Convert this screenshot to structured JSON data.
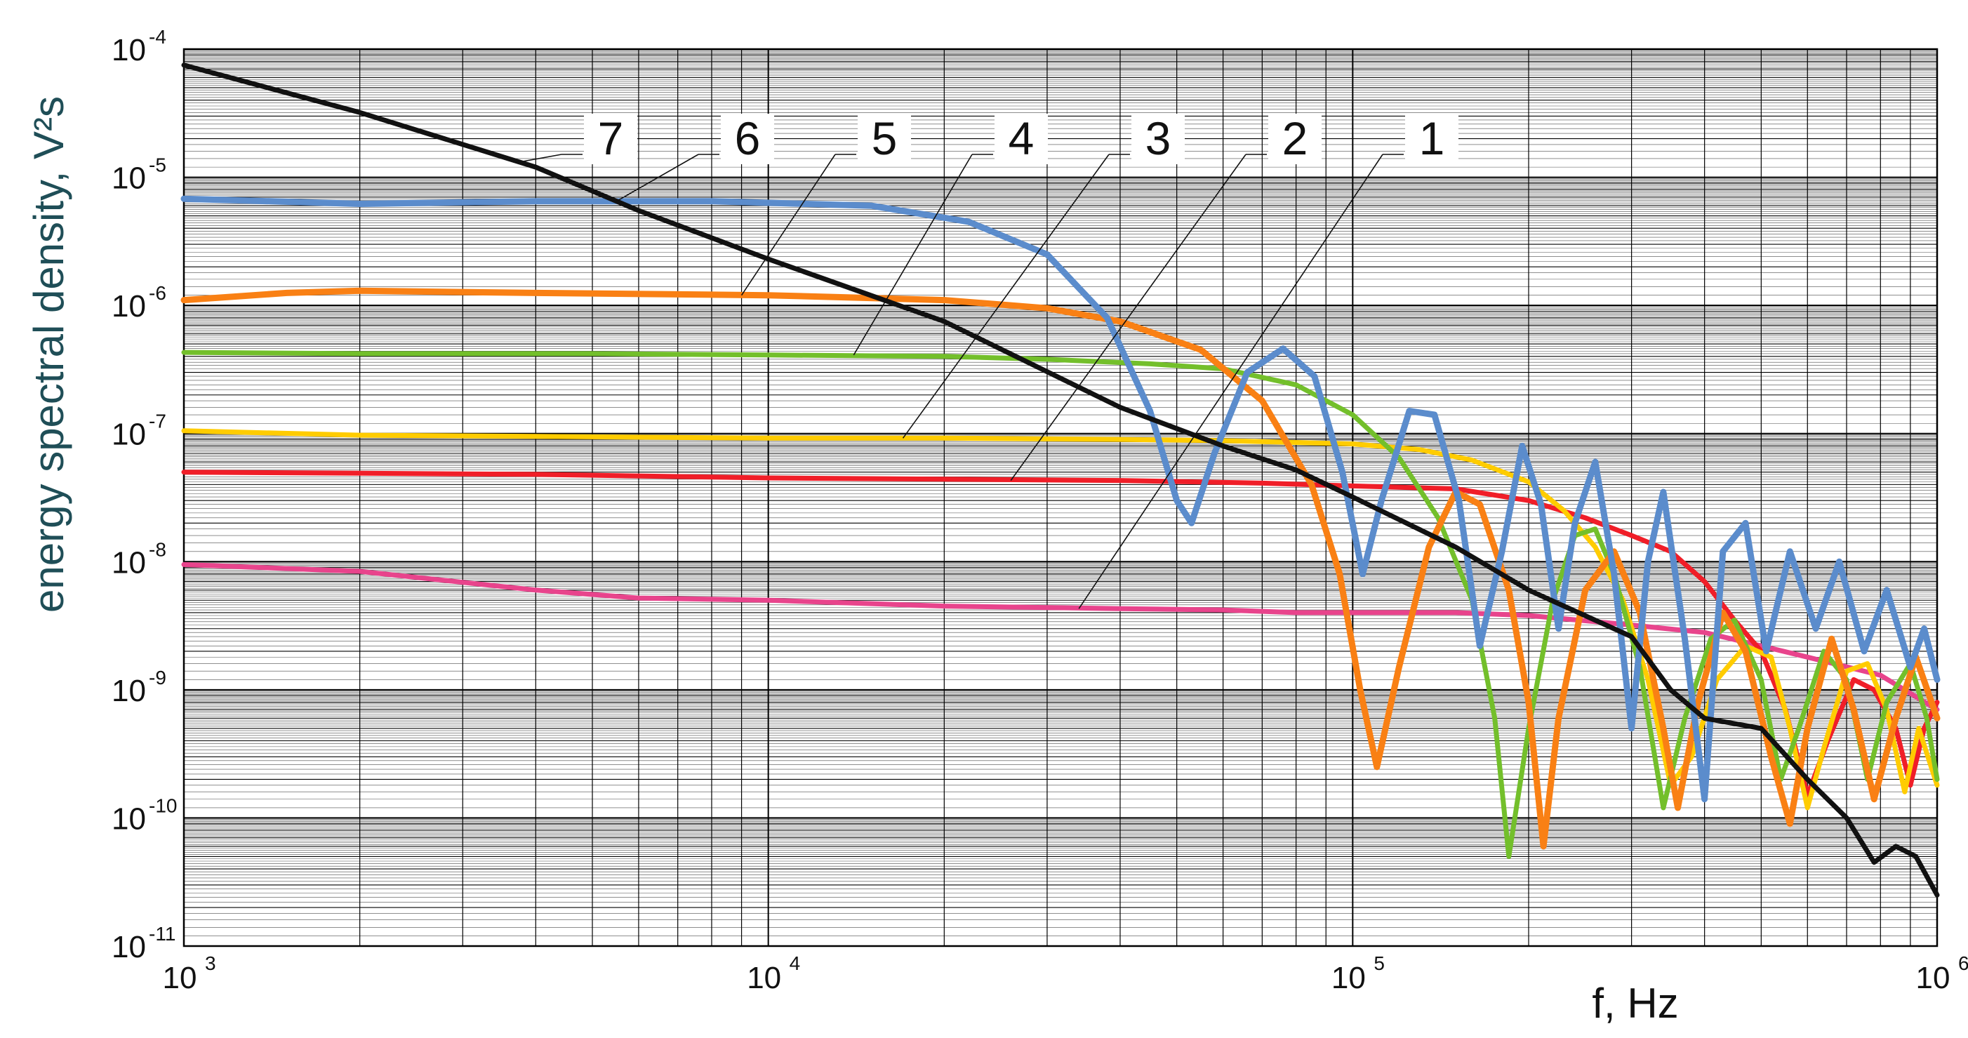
{
  "chart_data": {
    "type": "line",
    "title": "",
    "xlabel": "f, Hz",
    "ylabel": "energy spectral density, V²s",
    "x_scale": "log",
    "y_scale": "log",
    "xlim": [
      1000,
      1000000
    ],
    "ylim": [
      1e-11,
      0.0001
    ],
    "grid": true,
    "x_tick_labels": [
      {
        "value": 1000,
        "base": "10",
        "exp": "3"
      },
      {
        "value": 10000,
        "base": "10",
        "exp": "4"
      },
      {
        "value": 100000,
        "base": "10",
        "exp": "5"
      },
      {
        "value": 1000000,
        "base": "10",
        "exp": "6"
      }
    ],
    "y_tick_labels": [
      {
        "value": 0.0001,
        "base": "10",
        "exp": "-4"
      },
      {
        "value": 1e-05,
        "base": "10",
        "exp": "-5"
      },
      {
        "value": 1e-06,
        "base": "10",
        "exp": "-6"
      },
      {
        "value": 1e-07,
        "base": "10",
        "exp": "-7"
      },
      {
        "value": 1e-08,
        "base": "10",
        "exp": "-8"
      },
      {
        "value": 1e-09,
        "base": "10",
        "exp": "-9"
      },
      {
        "value": 1e-10,
        "base": "10",
        "exp": "-10"
      },
      {
        "value": 1e-11,
        "base": "10",
        "exp": "-11"
      }
    ],
    "colors": {
      "axis_title": "#1f4e57",
      "grid": "#000000",
      "1": "#e8448c",
      "2": "#f01e28",
      "3": "#ffcc00",
      "4": "#73bf2b",
      "5": "#f98014",
      "6": "#5b8ccc",
      "7": "#111111"
    },
    "series": [
      {
        "name": "1",
        "points": [
          [
            1000,
            9.5e-09
          ],
          [
            2000,
            8.4e-09
          ],
          [
            4000,
            6e-09
          ],
          [
            6000,
            5.2e-09
          ],
          [
            10000,
            5e-09
          ],
          [
            20000,
            4.5e-09
          ],
          [
            40000,
            4.3e-09
          ],
          [
            60000,
            4.2e-09
          ],
          [
            80000,
            4e-09
          ],
          [
            100000,
            4e-09
          ],
          [
            150000,
            4e-09
          ],
          [
            200000,
            3.8e-09
          ],
          [
            300000,
            3.2e-09
          ],
          [
            400000,
            2.8e-09
          ],
          [
            500000,
            2.2e-09
          ],
          [
            600000,
            1.8e-09
          ],
          [
            800000,
            1.3e-09
          ],
          [
            1000000,
            7e-10
          ]
        ],
        "label_anchor": [
          34000,
          4.3e-09
        ]
      },
      {
        "name": "2",
        "points": [
          [
            1000,
            5e-08
          ],
          [
            2000,
            4.9e-08
          ],
          [
            4000,
            4.8e-08
          ],
          [
            10000,
            4.5e-08
          ],
          [
            20000,
            4.4e-08
          ],
          [
            40000,
            4.3e-08
          ],
          [
            70000,
            4.1e-08
          ],
          [
            100000,
            3.9e-08
          ],
          [
            150000,
            3.7e-08
          ],
          [
            200000,
            3e-08
          ],
          [
            250000,
            2.2e-08
          ],
          [
            300000,
            1.6e-08
          ],
          [
            350000,
            1.2e-08
          ],
          [
            400000,
            7e-09
          ],
          [
            450000,
            3.5e-09
          ],
          [
            500000,
            2e-09
          ],
          [
            550000,
            7e-10
          ],
          [
            600000,
            1.5e-10
          ],
          [
            650000,
            4e-10
          ],
          [
            720000,
            1.2e-09
          ],
          [
            780000,
            1e-09
          ],
          [
            850000,
            5e-10
          ],
          [
            900000,
            1.8e-10
          ],
          [
            950000,
            5e-10
          ],
          [
            1000000,
            8e-10
          ]
        ],
        "label_anchor": [
          26000,
          4.3e-08
        ]
      },
      {
        "name": "3",
        "points": [
          [
            1000,
            1.05e-07
          ],
          [
            2000,
            9.7e-08
          ],
          [
            4000,
            9.5e-08
          ],
          [
            10000,
            9.2e-08
          ],
          [
            20000,
            9.2e-08
          ],
          [
            40000,
            9e-08
          ],
          [
            60000,
            8.8e-08
          ],
          [
            100000,
            8.3e-08
          ],
          [
            130000,
            7.5e-08
          ],
          [
            160000,
            6.2e-08
          ],
          [
            200000,
            4.2e-08
          ],
          [
            230000,
            2.5e-08
          ],
          [
            260000,
            1.3e-08
          ],
          [
            290000,
            5e-09
          ],
          [
            320000,
            1.2e-09
          ],
          [
            350000,
            1.8e-10
          ],
          [
            380000,
            3e-10
          ],
          [
            420000,
            1.2e-09
          ],
          [
            470000,
            2.2e-09
          ],
          [
            520000,
            1.8e-09
          ],
          [
            560000,
            5e-10
          ],
          [
            600000,
            1.2e-10
          ],
          [
            640000,
            3.5e-10
          ],
          [
            700000,
            1.4e-09
          ],
          [
            760000,
            1.6e-09
          ],
          [
            820000,
            7e-10
          ],
          [
            880000,
            1.6e-10
          ],
          [
            930000,
            5e-10
          ],
          [
            1000000,
            1.8e-10
          ]
        ],
        "label_anchor": [
          17000,
          9.2e-08
        ]
      },
      {
        "name": "4",
        "points": [
          [
            1000,
            4.3e-07
          ],
          [
            2000,
            4.2e-07
          ],
          [
            5000,
            4.2e-07
          ],
          [
            10000,
            4.1e-07
          ],
          [
            20000,
            4e-07
          ],
          [
            30000,
            3.8e-07
          ],
          [
            45000,
            3.5e-07
          ],
          [
            60000,
            3.2e-07
          ],
          [
            80000,
            2.4e-07
          ],
          [
            100000,
            1.4e-07
          ],
          [
            120000,
            6.5e-08
          ],
          [
            140000,
            2.2e-08
          ],
          [
            160000,
            5e-09
          ],
          [
            175000,
            6e-10
          ],
          [
            185000,
            5e-11
          ],
          [
            200000,
            5e-10
          ],
          [
            220000,
            5e-09
          ],
          [
            240000,
            1.6e-08
          ],
          [
            260000,
            1.8e-08
          ],
          [
            280000,
            8e-09
          ],
          [
            310000,
            1.5e-09
          ],
          [
            340000,
            1.2e-10
          ],
          [
            370000,
            6e-10
          ],
          [
            410000,
            2.5e-09
          ],
          [
            450000,
            3.5e-09
          ],
          [
            500000,
            1.2e-09
          ],
          [
            540000,
            2e-10
          ],
          [
            580000,
            5e-10
          ],
          [
            640000,
            2e-09
          ],
          [
            700000,
            1.2e-09
          ],
          [
            760000,
            2e-10
          ],
          [
            820000,
            8e-10
          ],
          [
            900000,
            1.6e-09
          ],
          [
            960000,
            6e-10
          ],
          [
            1000000,
            2e-10
          ]
        ],
        "label_anchor": [
          14000,
          4.1e-07
        ]
      },
      {
        "name": "5",
        "points": [
          [
            1000,
            1.1e-06
          ],
          [
            1500,
            1.25e-06
          ],
          [
            2000,
            1.3e-06
          ],
          [
            4000,
            1.25e-06
          ],
          [
            10000,
            1.2e-06
          ],
          [
            20000,
            1.1e-06
          ],
          [
            30000,
            9.5e-07
          ],
          [
            40000,
            7.5e-07
          ],
          [
            55000,
            4.5e-07
          ],
          [
            70000,
            1.8e-07
          ],
          [
            85000,
            4e-08
          ],
          [
            95000,
            8e-09
          ],
          [
            103000,
            1e-09
          ],
          [
            110000,
            2.5e-10
          ],
          [
            120000,
            1.5e-09
          ],
          [
            135000,
            1.3e-08
          ],
          [
            150000,
            3.5e-08
          ],
          [
            165000,
            2.8e-08
          ],
          [
            185000,
            6e-09
          ],
          [
            200000,
            8e-10
          ],
          [
            212000,
            6e-11
          ],
          [
            225000,
            6e-10
          ],
          [
            250000,
            6e-09
          ],
          [
            280000,
            1.2e-08
          ],
          [
            310000,
            4e-09
          ],
          [
            340000,
            5e-10
          ],
          [
            360000,
            1.2e-10
          ],
          [
            390000,
            8e-10
          ],
          [
            430000,
            4e-09
          ],
          [
            470000,
            2e-09
          ],
          [
            520000,
            3e-10
          ],
          [
            560000,
            9e-11
          ],
          [
            600000,
            5e-10
          ],
          [
            660000,
            2.5e-09
          ],
          [
            720000,
            7e-10
          ],
          [
            780000,
            1.4e-10
          ],
          [
            850000,
            6e-10
          ],
          [
            920000,
            1.8e-09
          ],
          [
            1000000,
            6e-10
          ]
        ],
        "label_anchor": [
          9000,
          1.2e-06
        ]
      },
      {
        "name": "6",
        "points": [
          [
            1000,
            6.8e-06
          ],
          [
            2000,
            6.2e-06
          ],
          [
            4000,
            6.5e-06
          ],
          [
            8000,
            6.5e-06
          ],
          [
            15000,
            6e-06
          ],
          [
            22000,
            4.5e-06
          ],
          [
            30000,
            2.5e-06
          ],
          [
            38000,
            8e-07
          ],
          [
            45000,
            1.5e-07
          ],
          [
            50000,
            3e-08
          ],
          [
            53000,
            2e-08
          ],
          [
            58000,
            7e-08
          ],
          [
            66000,
            3e-07
          ],
          [
            76000,
            4.6e-07
          ],
          [
            86000,
            2.8e-07
          ],
          [
            96000,
            5e-08
          ],
          [
            104000,
            8e-09
          ],
          [
            112000,
            3e-08
          ],
          [
            125000,
            1.5e-07
          ],
          [
            138000,
            1.4e-07
          ],
          [
            152000,
            3e-08
          ],
          [
            165000,
            2.2e-09
          ],
          [
            180000,
            1.2e-08
          ],
          [
            195000,
            8e-08
          ],
          [
            210000,
            2.8e-08
          ],
          [
            225000,
            3e-09
          ],
          [
            240000,
            2e-08
          ],
          [
            260000,
            6e-08
          ],
          [
            280000,
            8e-09
          ],
          [
            300000,
            5e-10
          ],
          [
            320000,
            1e-08
          ],
          [
            340000,
            3.5e-08
          ],
          [
            370000,
            2.5e-09
          ],
          [
            400000,
            1.4e-10
          ],
          [
            430000,
            1.2e-08
          ],
          [
            470000,
            2e-08
          ],
          [
            510000,
            2e-09
          ],
          [
            560000,
            1.2e-08
          ],
          [
            620000,
            3e-09
          ],
          [
            680000,
            1e-08
          ],
          [
            750000,
            2e-09
          ],
          [
            820000,
            6e-09
          ],
          [
            900000,
            1.5e-09
          ],
          [
            950000,
            3e-09
          ],
          [
            1000000,
            1.2e-09
          ]
        ],
        "label_anchor": [
          5500,
          6.5e-06
        ]
      },
      {
        "name": "7",
        "points": [
          [
            1000,
            7.5e-05
          ],
          [
            2000,
            3.2e-05
          ],
          [
            4000,
            1.2e-05
          ],
          [
            6000,
            5.5e-06
          ],
          [
            10000,
            2.3e-06
          ],
          [
            20000,
            7.5e-07
          ],
          [
            40000,
            1.6e-07
          ],
          [
            60000,
            8e-08
          ],
          [
            80000,
            5.2e-08
          ],
          [
            100000,
            3.2e-08
          ],
          [
            150000,
            1.3e-08
          ],
          [
            200000,
            6e-09
          ],
          [
            300000,
            2.6e-09
          ],
          [
            350000,
            1e-09
          ],
          [
            400000,
            6e-10
          ],
          [
            500000,
            5e-10
          ],
          [
            600000,
            2e-10
          ],
          [
            700000,
            1e-10
          ],
          [
            780000,
            4.5e-11
          ],
          [
            850000,
            6e-11
          ],
          [
            920000,
            5e-11
          ],
          [
            1000000,
            2.5e-11
          ]
        ],
        "label_anchor": [
          3700,
          1.3e-05
        ]
      }
    ],
    "curve_label_order": [
      "7",
      "6",
      "5",
      "4",
      "3",
      "2",
      "1"
    ]
  }
}
